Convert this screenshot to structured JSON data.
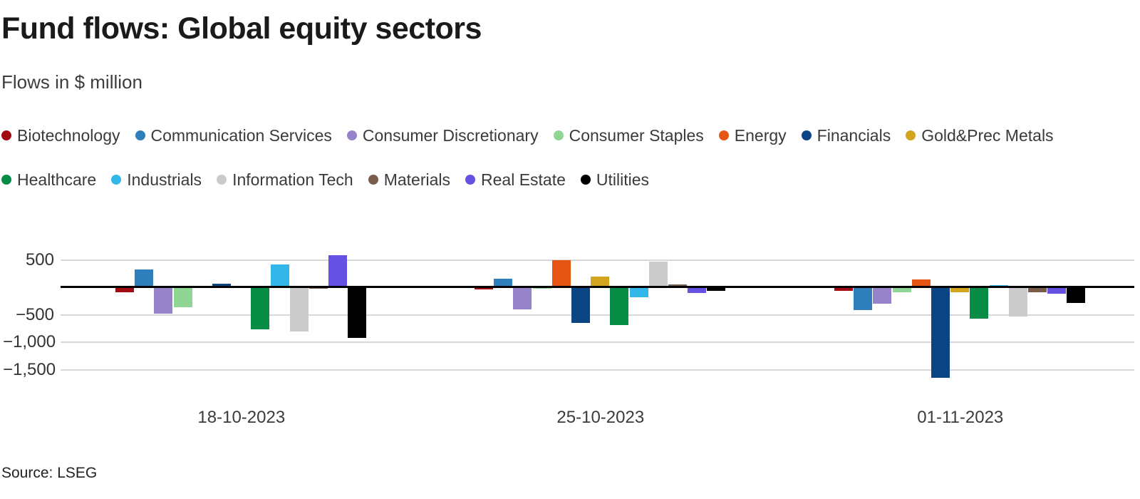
{
  "header": {
    "title": "Fund flows: Global equity sectors",
    "subtitle": "Flows in $ million"
  },
  "source": "Source: LSEG",
  "chart_data": {
    "type": "bar",
    "title": "Fund flows: Global equity sectors",
    "subtitle": "Flows in $ million",
    "ylabel": "Flows in $ million",
    "xlabel": "",
    "categories": [
      "18-10-2023",
      "25-10-2023",
      "01-11-2023"
    ],
    "series": [
      {
        "name": "Biotechnology",
        "color": "#a10c12",
        "values": [
          -95,
          -45,
          -70
        ]
      },
      {
        "name": "Communication Services",
        "color": "#2f7fbc",
        "values": [
          320,
          160,
          -410
        ]
      },
      {
        "name": "Consumer Discretionary",
        "color": "#9783c9",
        "values": [
          -480,
          -405,
          -300
        ]
      },
      {
        "name": "Consumer Staples",
        "color": "#8fd694",
        "values": [
          -370,
          -25,
          -85
        ]
      },
      {
        "name": "Energy",
        "color": "#e65513",
        "values": [
          0,
          500,
          140
        ]
      },
      {
        "name": "Financials",
        "color": "#0c4585",
        "values": [
          70,
          -650,
          -1645
        ]
      },
      {
        "name": "Gold&Prec Metals",
        "color": "#d2a41f",
        "values": [
          0,
          200,
          -85
        ]
      },
      {
        "name": "Healthcare",
        "color": "#078c45",
        "values": [
          -770,
          -690,
          -565
        ]
      },
      {
        "name": "Industrials",
        "color": "#33b6ea",
        "values": [
          420,
          -180,
          40
        ]
      },
      {
        "name": "Information Tech",
        "color": "#cbcbcb",
        "values": [
          -800,
          470,
          -535
        ]
      },
      {
        "name": "Materials",
        "color": "#7a5c4a",
        "values": [
          -30,
          50,
          -85
        ]
      },
      {
        "name": "Real Estate",
        "color": "#6551e2",
        "values": [
          580,
          -100,
          -115
        ]
      },
      {
        "name": "Utilities",
        "color": "#000000",
        "values": [
          -920,
          -70,
          -280
        ]
      }
    ],
    "yticks": [
      {
        "value": 500,
        "label": "500"
      },
      {
        "value": -500,
        "label": "−500"
      },
      {
        "value": -1000,
        "label": "−1,000"
      },
      {
        "value": -1500,
        "label": "−1,500"
      }
    ],
    "ylim": [
      -1800,
      800
    ],
    "grid": true,
    "legend_position": "top",
    "legend_rows": 2
  }
}
